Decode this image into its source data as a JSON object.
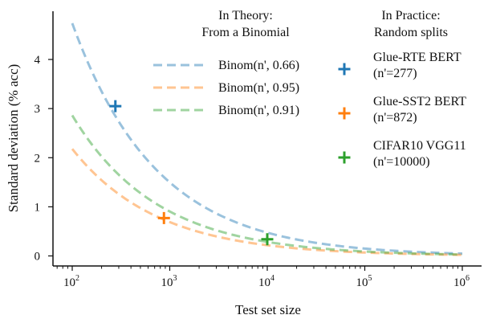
{
  "chart_data": {
    "type": "line",
    "xlabel": "Test set size",
    "ylabel": "Standard deviation (% acc)",
    "xscale": "log",
    "xlim": [
      100,
      1000000
    ],
    "ylim": [
      -0.1,
      5.0
    ],
    "x_ticks": [
      {
        "value": 100,
        "base": "10",
        "exp": "2"
      },
      {
        "value": 1000,
        "base": "10",
        "exp": "3"
      },
      {
        "value": 10000,
        "base": "10",
        "exp": "4"
      },
      {
        "value": 100000,
        "base": "10",
        "exp": "5"
      },
      {
        "value": 1000000,
        "base": "10",
        "exp": "6"
      }
    ],
    "y_ticks": [
      0,
      1,
      2,
      3,
      4
    ],
    "grid": false,
    "theory_legend": {
      "title": [
        "In Theory:",
        "From a Binomial"
      ],
      "placement": "top-center"
    },
    "practice_legend": {
      "title": [
        "In Practice:",
        "Random splits"
      ],
      "placement": "top-right"
    },
    "series": [
      {
        "name": "Binom(n', 0.66)",
        "p": 0.66,
        "style": "dashed",
        "color": "#1f77b4",
        "opacity": 0.45
      },
      {
        "name": "Binom(n', 0.95)",
        "p": 0.95,
        "style": "dashed",
        "color": "#ff7f0e",
        "opacity": 0.45
      },
      {
        "name": "Binom(n', 0.91)",
        "p": 0.91,
        "style": "dashed",
        "color": "#2ca02c",
        "opacity": 0.45
      }
    ],
    "points": [
      {
        "label": [
          "Glue-RTE BERT",
          "(n'=277)"
        ],
        "x": 277,
        "y": 3.05,
        "color": "#1f77b4"
      },
      {
        "label": [
          "Glue-SST2 BERT",
          "(n'=872)"
        ],
        "x": 872,
        "y": 0.77,
        "color": "#ff7f0e"
      },
      {
        "label": [
          "CIFAR10 VGG11",
          "(n'=10000)"
        ],
        "x": 10000,
        "y": 0.34,
        "color": "#2ca02c"
      }
    ]
  }
}
